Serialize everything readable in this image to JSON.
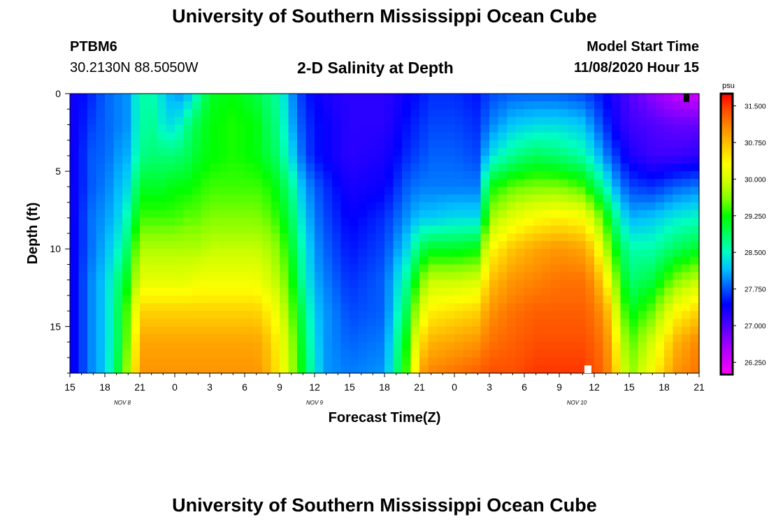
{
  "header": {
    "title": "University of Southern Mississippi Ocean Cube",
    "station": "PTBM6",
    "coords": "30.2130N 88.5050W",
    "subtitle": "2-D Salinity at Depth",
    "model_start_label": "Model Start Time",
    "model_start_value": "11/08/2020 Hour 15"
  },
  "footer": {
    "title": "University of Southern Mississippi Ocean Cube"
  },
  "colors": {
    "palette": [
      "#ff00ff",
      "#c800ff",
      "#8a00ff",
      "#4000ff",
      "#0000ff",
      "#0060ff",
      "#00c0ff",
      "#00ffc0",
      "#00ff60",
      "#00ff00",
      "#80ff00",
      "#d0ff00",
      "#ffff00",
      "#ffc800",
      "#ff9000",
      "#ff5000",
      "#ff0000"
    ]
  },
  "chart_data": {
    "type": "heatmap",
    "title": "2-D Salinity at Depth",
    "xlabel": "Forecast Time(Z)",
    "ylabel": "Depth (ft)",
    "x_range_hours": [
      0,
      54
    ],
    "ylim": [
      0,
      18
    ],
    "x_tick_labels": [
      "15",
      "18",
      "21",
      "0",
      "3",
      "6",
      "9",
      "12",
      "15",
      "18",
      "21",
      "0",
      "3",
      "6",
      "9",
      "12",
      "15",
      "18",
      "21"
    ],
    "y_ticks": [
      0,
      5,
      10,
      15
    ],
    "date_labels": [
      {
        "text": "NOV  8",
        "hour": 4.5
      },
      {
        "text": "NOV  9",
        "hour": 21
      },
      {
        "text": "NOV  10",
        "hour": 43.5
      }
    ],
    "colorbar": {
      "unit": "psu",
      "min": 26.0,
      "max": 31.75,
      "tick_labels": [
        "26.250",
        "27.000",
        "27.750",
        "28.500",
        "29.250",
        "30.000",
        "30.750",
        "31.500"
      ],
      "tick_values": [
        26.25,
        27.0,
        27.75,
        28.5,
        29.25,
        30.0,
        30.75,
        31.5
      ]
    },
    "depth_levels_ft": [
      0,
      2,
      4,
      6,
      8,
      10,
      12,
      14,
      16,
      18
    ],
    "profiles": [
      {
        "hour": 0,
        "salinity": [
          27.3,
          27.3,
          27.3,
          27.3,
          27.3,
          27.3,
          27.3,
          27.3,
          27.3,
          27.3
        ]
      },
      {
        "hour": 2,
        "salinity": [
          27.6,
          27.7,
          27.8,
          27.8,
          27.9,
          27.9,
          28.0,
          28.0,
          28.0,
          28.0
        ]
      },
      {
        "hour": 3,
        "salinity": [
          27.8,
          27.8,
          27.8,
          27.9,
          28.0,
          28.1,
          28.2,
          28.2,
          28.2,
          28.2
        ]
      },
      {
        "hour": 4,
        "salinity": [
          27.9,
          27.9,
          28.0,
          28.1,
          28.2,
          28.4,
          28.7,
          28.8,
          28.8,
          28.9
        ]
      },
      {
        "hour": 5,
        "salinity": [
          28.0,
          28.0,
          28.1,
          28.3,
          28.6,
          28.9,
          29.2,
          29.5,
          29.6,
          29.8
        ]
      },
      {
        "hour": 6,
        "salinity": [
          28.6,
          28.6,
          28.7,
          29.1,
          29.4,
          29.8,
          30.1,
          30.6,
          30.9,
          31.0
        ]
      },
      {
        "hour": 7,
        "salinity": [
          28.6,
          28.7,
          28.8,
          29.1,
          29.4,
          29.8,
          30.1,
          30.6,
          30.9,
          31.0
        ]
      },
      {
        "hour": 8,
        "salinity": [
          28.3,
          28.4,
          28.8,
          29.1,
          29.4,
          29.8,
          30.1,
          30.6,
          30.9,
          31.0
        ]
      },
      {
        "hour": 9,
        "salinity": [
          28.0,
          28.3,
          28.8,
          29.2,
          29.4,
          29.8,
          30.1,
          30.6,
          30.9,
          31.0
        ]
      },
      {
        "hour": 10,
        "salinity": [
          28.1,
          28.7,
          28.9,
          29.2,
          29.5,
          29.8,
          30.1,
          30.6,
          30.9,
          31.0
        ]
      },
      {
        "hour": 11,
        "salinity": [
          28.6,
          29.0,
          29.1,
          29.3,
          29.5,
          29.8,
          30.2,
          30.6,
          30.9,
          31.0
        ]
      },
      {
        "hour": 12,
        "salinity": [
          29.1,
          29.2,
          29.2,
          29.4,
          29.6,
          29.9,
          30.2,
          30.6,
          30.9,
          31.0
        ]
      },
      {
        "hour": 14,
        "salinity": [
          29.2,
          29.3,
          29.3,
          29.4,
          29.6,
          29.9,
          30.2,
          30.6,
          30.9,
          31.0
        ]
      },
      {
        "hour": 16,
        "salinity": [
          29.0,
          29.2,
          29.2,
          29.4,
          29.6,
          29.9,
          30.2,
          30.6,
          30.9,
          31.0
        ]
      },
      {
        "hour": 17,
        "salinity": [
          28.8,
          28.9,
          29.0,
          29.3,
          29.5,
          29.8,
          30.0,
          30.4,
          30.7,
          30.8
        ]
      },
      {
        "hour": 18,
        "salinity": [
          28.6,
          28.7,
          28.8,
          29.1,
          29.3,
          29.6,
          29.8,
          30.1,
          30.3,
          30.4
        ]
      },
      {
        "hour": 19,
        "salinity": [
          28.0,
          28.1,
          28.3,
          28.7,
          28.9,
          29.1,
          29.3,
          29.5,
          29.7,
          29.8
        ]
      },
      {
        "hour": 20,
        "salinity": [
          27.6,
          27.7,
          27.8,
          28.1,
          28.3,
          28.5,
          28.6,
          28.9,
          29.0,
          29.1
        ]
      },
      {
        "hour": 21,
        "salinity": [
          27.4,
          27.5,
          27.5,
          27.8,
          27.9,
          28.0,
          28.1,
          28.2,
          28.3,
          28.4
        ]
      },
      {
        "hour": 22,
        "salinity": [
          27.3,
          27.4,
          27.4,
          27.6,
          27.7,
          27.8,
          27.9,
          28.0,
          28.0,
          28.0
        ]
      },
      {
        "hour": 24,
        "salinity": [
          27.2,
          27.2,
          27.2,
          27.3,
          27.4,
          27.5,
          27.6,
          27.7,
          27.8,
          27.9
        ]
      },
      {
        "hour": 27,
        "salinity": [
          27.2,
          27.2,
          27.3,
          27.4,
          27.6,
          27.7,
          27.8,
          27.8,
          27.9,
          28.0
        ]
      },
      {
        "hour": 29,
        "salinity": [
          27.4,
          27.5,
          27.6,
          27.8,
          28.0,
          28.3,
          28.7,
          29.0,
          29.3,
          29.5
        ]
      },
      {
        "hour": 30,
        "salinity": [
          27.5,
          27.6,
          27.7,
          27.9,
          28.2,
          28.9,
          29.5,
          30.0,
          30.5,
          30.9
        ]
      },
      {
        "hour": 31,
        "salinity": [
          27.6,
          27.7,
          27.8,
          27.9,
          28.2,
          29.1,
          29.9,
          30.4,
          30.8,
          31.1
        ]
      },
      {
        "hour": 33,
        "salinity": [
          27.6,
          27.7,
          27.8,
          27.9,
          28.3,
          29.1,
          29.9,
          30.5,
          30.9,
          31.2
        ]
      },
      {
        "hour": 35,
        "salinity": [
          27.5,
          27.6,
          27.7,
          27.9,
          28.3,
          29.2,
          30.0,
          30.6,
          31.0,
          31.3
        ]
      },
      {
        "hour": 36,
        "salinity": [
          27.7,
          27.9,
          28.3,
          29.2,
          29.7,
          30.3,
          30.7,
          31.0,
          31.2,
          31.4
        ]
      },
      {
        "hour": 38,
        "salinity": [
          27.8,
          28.2,
          28.7,
          29.5,
          30.1,
          30.7,
          31.0,
          31.2,
          31.3,
          31.4
        ]
      },
      {
        "hour": 40,
        "salinity": [
          27.8,
          28.3,
          28.9,
          29.6,
          30.3,
          30.9,
          31.1,
          31.3,
          31.4,
          31.5
        ]
      },
      {
        "hour": 42,
        "salinity": [
          27.8,
          28.3,
          28.8,
          29.6,
          30.4,
          31.0,
          31.2,
          31.3,
          31.4,
          31.5
        ]
      },
      {
        "hour": 44,
        "salinity": [
          27.7,
          28.2,
          28.6,
          29.4,
          30.3,
          30.9,
          31.2,
          31.3,
          31.4,
          31.5
        ]
      },
      {
        "hour": 45,
        "salinity": [
          27.6,
          27.9,
          28.3,
          29.0,
          29.9,
          30.6,
          31.0,
          31.2,
          31.3,
          31.4
        ]
      },
      {
        "hour": 46,
        "salinity": [
          27.4,
          27.6,
          27.9,
          28.5,
          29.3,
          29.8,
          30.4,
          30.9,
          31.1,
          31.2
        ]
      },
      {
        "hour": 47,
        "salinity": [
          27.2,
          27.3,
          27.6,
          28.0,
          28.6,
          29.1,
          29.5,
          29.9,
          30.3,
          30.5
        ]
      },
      {
        "hour": 48,
        "salinity": [
          27.0,
          27.1,
          27.3,
          27.7,
          28.1,
          28.6,
          28.8,
          29.1,
          29.4,
          29.6
        ]
      },
      {
        "hour": 50,
        "salinity": [
          26.7,
          27.0,
          27.1,
          27.6,
          28.2,
          28.6,
          29.0,
          29.5,
          30.0,
          30.3
        ]
      },
      {
        "hour": 52,
        "salinity": [
          26.4,
          26.9,
          27.1,
          27.8,
          28.4,
          28.9,
          29.6,
          30.3,
          30.8,
          31.0
        ]
      },
      {
        "hour": 54,
        "salinity": [
          26.3,
          26.9,
          27.2,
          27.9,
          28.5,
          29.1,
          29.9,
          30.6,
          31.1,
          31.2
        ]
      }
    ]
  }
}
